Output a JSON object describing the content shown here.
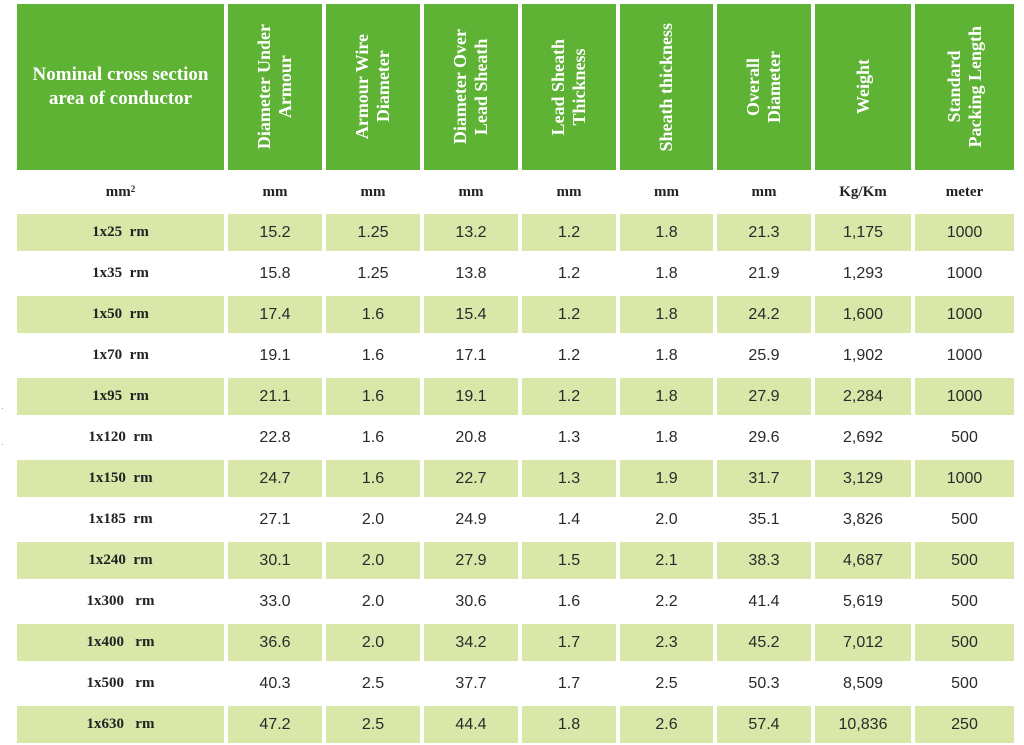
{
  "headers": [
    "Nominal cross section area of conductor",
    [
      "Diameter Under",
      "Armour"
    ],
    [
      "Armour Wire",
      "Diameter"
    ],
    [
      "Diameter Over",
      "Lead Sheath"
    ],
    [
      "Lead Sheath",
      "Thickness"
    ],
    [
      "Sheath thickness"
    ],
    [
      "Overall",
      "Diameter"
    ],
    [
      "Weight"
    ],
    [
      "Standard",
      "Packing Length"
    ]
  ],
  "units": [
    "mm",
    "mm",
    "mm",
    "mm",
    "mm",
    "mm",
    "mm",
    "Kg/Km",
    "meter"
  ],
  "units_superscript": "2",
  "rows": [
    [
      "1x25  rm",
      "15.2",
      "1.25",
      "13.2",
      "1.2",
      "1.8",
      "21.3",
      "1,175",
      "1000"
    ],
    [
      "1x35  rm",
      "15.8",
      "1.25",
      "13.8",
      "1.2",
      "1.8",
      "21.9",
      "1,293",
      "1000"
    ],
    [
      "1x50  rm",
      "17.4",
      "1.6",
      "15.4",
      "1.2",
      "1.8",
      "24.2",
      "1,600",
      "1000"
    ],
    [
      "1x70  rm",
      "19.1",
      "1.6",
      "17.1",
      "1.2",
      "1.8",
      "25.9",
      "1,902",
      "1000"
    ],
    [
      "1x95  rm",
      "21.1",
      "1.6",
      "19.1",
      "1.2",
      "1.8",
      "27.9",
      "2,284",
      "1000"
    ],
    [
      "1x120  rm",
      "22.8",
      "1.6",
      "20.8",
      "1.3",
      "1.8",
      "29.6",
      "2,692",
      "500"
    ],
    [
      "1x150  rm",
      "24.7",
      "1.6",
      "22.7",
      "1.3",
      "1.9",
      "31.7",
      "3,129",
      "1000"
    ],
    [
      "1x185  rm",
      "27.1",
      "2.0",
      "24.9",
      "1.4",
      "2.0",
      "35.1",
      "3,826",
      "500"
    ],
    [
      "1x240  rm",
      "30.1",
      "2.0",
      "27.9",
      "1.5",
      "2.1",
      "38.3",
      "4,687",
      "500"
    ],
    [
      "1x300   rm",
      "33.0",
      "2.0",
      "30.6",
      "1.6",
      "2.2",
      "41.4",
      "5,619",
      "500"
    ],
    [
      "1x400   rm",
      "36.6",
      "2.0",
      "34.2",
      "1.7",
      "2.3",
      "45.2",
      "7,012",
      "500"
    ],
    [
      "1x500   rm",
      "40.3",
      "2.5",
      "37.7",
      "1.7",
      "2.5",
      "50.3",
      "8,509",
      "500"
    ],
    [
      "1x630   rm",
      "47.2",
      "2.5",
      "44.4",
      "1.8",
      "2.6",
      "57.4",
      "10,836",
      "250"
    ]
  ],
  "colors": {
    "header_bg": "#5eb234",
    "row_shade": "#d9e7a9"
  }
}
